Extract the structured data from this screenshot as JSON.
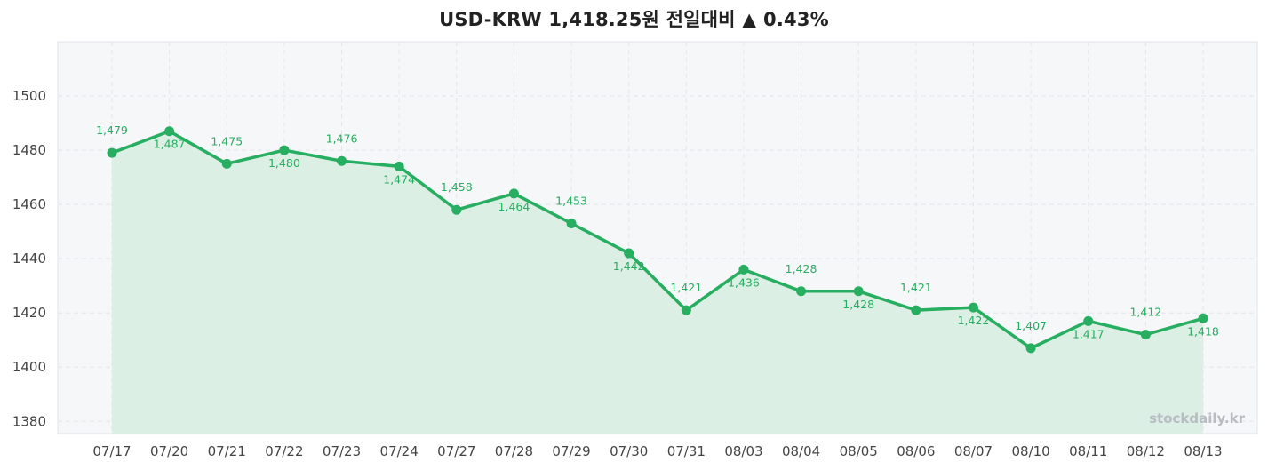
{
  "title": "USD-KRW  1,418.25원  전일대비 ▲ 0.43%",
  "watermark": "stockdaily.kr",
  "colors": {
    "line": "#27ae60",
    "label": "#27ae60",
    "fill": "#dcefe4",
    "plot_bg": "#f6f7f9",
    "grid": "#e4e6ea"
  },
  "chart_data": {
    "type": "line",
    "title": "USD-KRW  1,418.25원  전일대비 ▲ 0.43%",
    "xlabel": "",
    "ylabel": "",
    "categories": [
      "07/17",
      "07/20",
      "07/21",
      "07/22",
      "07/23",
      "07/24",
      "07/27",
      "07/28",
      "07/29",
      "07/30",
      "07/31",
      "08/03",
      "08/04",
      "08/05",
      "08/06",
      "08/07",
      "08/10",
      "08/11",
      "08/12",
      "08/13"
    ],
    "values": [
      1479,
      1487,
      1475,
      1480,
      1476,
      1474,
      1458,
      1464,
      1453,
      1442,
      1421,
      1436,
      1428,
      1428,
      1421,
      1422,
      1407,
      1417,
      1412,
      1418
    ],
    "value_labels": [
      "1,479",
      "1,487",
      "1,475",
      "1,480",
      "1,476",
      "1,474",
      "1,458",
      "1,464",
      "1,453",
      "1,442",
      "1,421",
      "1,436",
      "1,428",
      "1,428",
      "1,421",
      "1,422",
      "1,407",
      "1,417",
      "1,412",
      "1,418"
    ],
    "label_positions": [
      "above",
      "below",
      "above",
      "below",
      "above",
      "below",
      "above",
      "below",
      "above",
      "below",
      "above",
      "below",
      "above",
      "below",
      "above",
      "below",
      "above",
      "below",
      "above",
      "below"
    ],
    "yticks": [
      1380,
      1400,
      1420,
      1440,
      1460,
      1480,
      1500
    ],
    "ylim": [
      1375.5,
      1520
    ],
    "grid": true,
    "area_fill": true,
    "markers": true
  }
}
